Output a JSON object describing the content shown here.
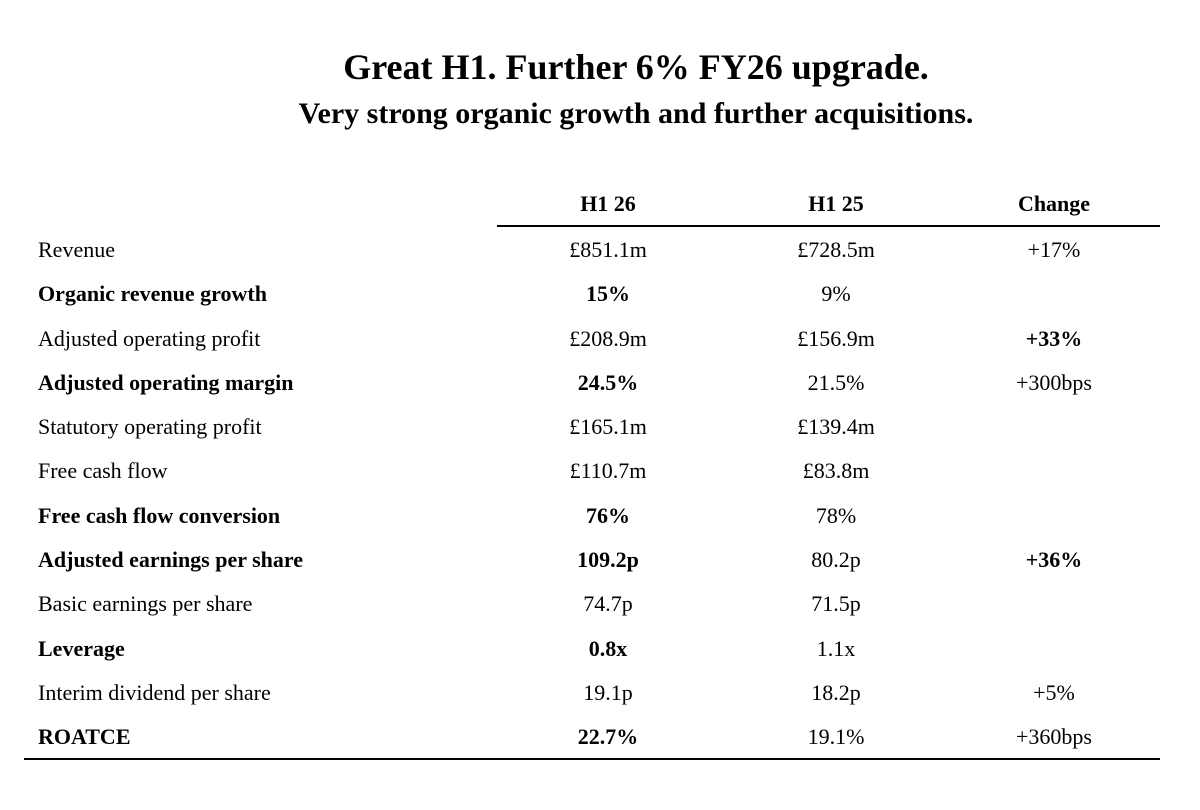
{
  "title": "Great H1. Further 6% FY26 upgrade.",
  "subtitle": "Very strong organic growth and further acquisitions.",
  "columns": [
    "H1 26",
    "H1 25",
    "Change"
  ],
  "rows": [
    {
      "label": "Revenue",
      "h1_26": "£851.1m",
      "h1_25": "£728.5m",
      "change": "+17%"
    },
    {
      "label": "Organic revenue growth",
      "h1_26": "15%",
      "h1_25": "9%",
      "change": ""
    },
    {
      "label": "Adjusted operating profit",
      "h1_26": "£208.9m",
      "h1_25": "£156.9m",
      "change": "+33%"
    },
    {
      "label": "Adjusted operating margin",
      "h1_26": "24.5%",
      "h1_25": "21.5%",
      "change": "+300bps"
    },
    {
      "label": "Statutory operating profit",
      "h1_26": "£165.1m",
      "h1_25": "£139.4m",
      "change": ""
    },
    {
      "label": "Free cash flow",
      "h1_26": "£110.7m",
      "h1_25": "£83.8m",
      "change": ""
    },
    {
      "label": "Free cash flow conversion",
      "h1_26": "76%",
      "h1_25": "78%",
      "change": ""
    },
    {
      "label": "Adjusted earnings per share",
      "h1_26": "109.2p",
      "h1_25": "80.2p",
      "change": "+36%"
    },
    {
      "label": "Basic earnings per share",
      "h1_26": "74.7p",
      "h1_25": "71.5p",
      "change": ""
    },
    {
      "label": "Leverage",
      "h1_26": "0.8x",
      "h1_25": "1.1x",
      "change": ""
    },
    {
      "label": "Interim dividend per share",
      "h1_26": "19.1p",
      "h1_25": "18.2p",
      "change": "+5%"
    },
    {
      "label": "ROATCE",
      "h1_26": "22.7%",
      "h1_25": "19.1%",
      "change": "+360bps"
    }
  ]
}
